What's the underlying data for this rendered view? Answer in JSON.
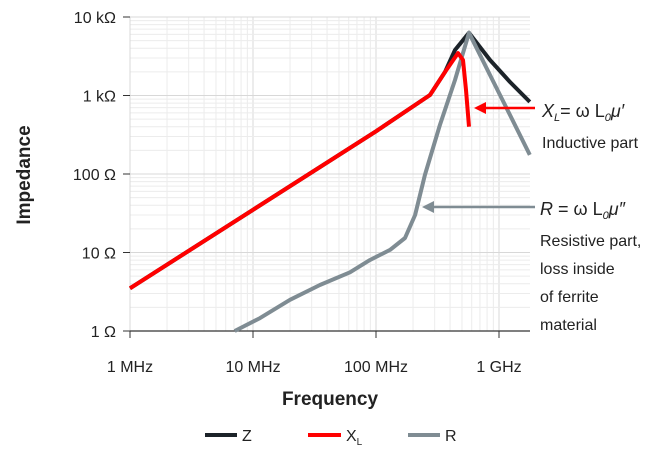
{
  "chart_data": {
    "type": "line",
    "xlabel": "Frequency",
    "ylabel": "Impedance",
    "xscale": "log",
    "yscale": "log",
    "xunit": "MHz",
    "yunit": "Ω",
    "xlim": [
      1,
      1780
    ],
    "ylim": [
      1,
      10000
    ],
    "grid": true,
    "legend_position": "bottom",
    "x_ticks": [
      {
        "value": 1,
        "label": "1 MHz"
      },
      {
        "value": 10,
        "label": "10 MHz"
      },
      {
        "value": 100,
        "label": "100 MHz"
      },
      {
        "value": 1000,
        "label": "1 GHz"
      }
    ],
    "y_ticks": [
      {
        "value": 1,
        "label": "1 Ω"
      },
      {
        "value": 10,
        "label": "10 Ω"
      },
      {
        "value": 100,
        "label": "100 Ω"
      },
      {
        "value": 1000,
        "label": "1 kΩ"
      },
      {
        "value": 10000,
        "label": "10 kΩ"
      }
    ],
    "series": [
      {
        "name": "Z",
        "label_main": "Z",
        "label_sub": "",
        "color": "#1c2329",
        "points": [
          [
            1,
            3.5
          ],
          [
            10,
            35
          ],
          [
            100,
            350
          ],
          [
            275,
            1014
          ],
          [
            364,
            1995
          ],
          [
            439,
            3800
          ],
          [
            570,
            6300
          ],
          [
            845,
            2830
          ],
          [
            1228,
            1486
          ],
          [
            1780,
            830
          ]
        ]
      },
      {
        "name": "R",
        "label_main": "R",
        "label_sub": "",
        "color": "#7f8c93",
        "points": [
          [
            7.1,
            1
          ],
          [
            11.4,
            1.46
          ],
          [
            20,
            2.5
          ],
          [
            35,
            3.86
          ],
          [
            61.5,
            5.6
          ],
          [
            89,
            8.0
          ],
          [
            130,
            10.8
          ],
          [
            172,
            15.3
          ],
          [
            208,
            30
          ],
          [
            250,
            97
          ],
          [
            331,
            421
          ],
          [
            439,
            1575
          ],
          [
            570,
            6300
          ],
          [
            845,
            1825
          ],
          [
            1228,
            565
          ],
          [
            1780,
            175
          ]
        ]
      },
      {
        "name": "XL",
        "label_main": "X",
        "label_sub": "L",
        "color": "#ff0000",
        "points": [
          [
            1,
            3.5
          ],
          [
            10,
            35
          ],
          [
            100,
            350
          ],
          [
            275,
            1014
          ],
          [
            364,
            1995
          ],
          [
            464,
            3470
          ],
          [
            510,
            2830
          ],
          [
            539,
            1175
          ],
          [
            570,
            400
          ]
        ]
      }
    ],
    "annotations": [
      {
        "formula": {
          "var": "X",
          "var_sub": "L",
          "eq": "= ω L",
          "l_sub": "0",
          "mu": "μ′"
        },
        "text_lines": [
          "Inductive part"
        ],
        "arrow_to": [
          590,
          1300
        ],
        "color": "#ff0000"
      },
      {
        "formula": {
          "var": "R",
          "var_sub": "",
          "eq": " = ω L",
          "l_sub": "0",
          "mu": "μ″"
        },
        "text_lines": [
          "Resistive part,",
          "loss inside",
          "of ferrite",
          "material"
        ],
        "arrow_to": [
          255,
          135
        ],
        "color": "#7f8c93"
      }
    ]
  }
}
